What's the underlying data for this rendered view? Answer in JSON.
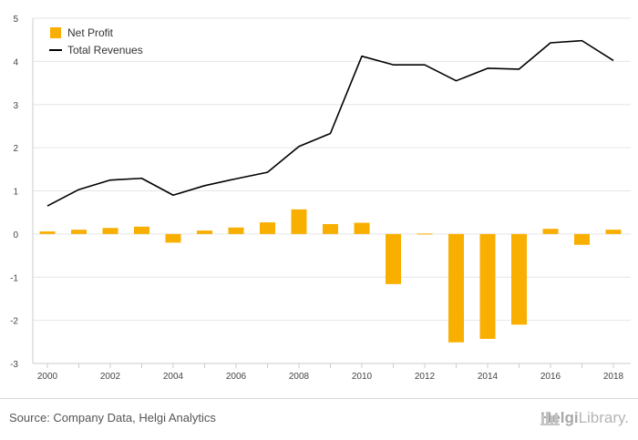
{
  "chart_data": {
    "type": "bar",
    "x": [
      2000,
      2001,
      2002,
      2003,
      2004,
      2005,
      2006,
      2007,
      2008,
      2009,
      2010,
      2011,
      2012,
      2013,
      2014,
      2015,
      2016,
      2017,
      2018
    ],
    "x_tick_labels": [
      "2000",
      "2002",
      "2004",
      "2006",
      "2008",
      "2010",
      "2012",
      "2014",
      "2016",
      "2018"
    ],
    "y_tick_labels": [
      "5",
      "4",
      "3",
      "2",
      "1",
      "0",
      "-1",
      "-2",
      "-3"
    ],
    "ylim": [
      -3,
      5
    ],
    "grid": true,
    "legend_position": "top-left",
    "series": [
      {
        "name": "Net Profit",
        "type": "bar",
        "color": "#F9AF00",
        "values": [
          0.06,
          0.1,
          0.14,
          0.17,
          -0.2,
          0.08,
          0.15,
          0.27,
          0.57,
          0.23,
          0.26,
          -1.16,
          0.01,
          -2.51,
          -2.43,
          -2.1,
          0.12,
          -0.25,
          0.1
        ]
      },
      {
        "name": "Total Revenues",
        "type": "line",
        "color": "#000000",
        "values": [
          0.65,
          1.03,
          1.25,
          1.29,
          0.9,
          1.12,
          1.28,
          1.43,
          2.03,
          2.33,
          4.12,
          3.92,
          3.92,
          3.55,
          3.84,
          3.82,
          4.43,
          4.48,
          4.02
        ]
      }
    ]
  },
  "footer": {
    "source": "Source: Company Data, Helgi Analytics",
    "brand_prefix": "Helgi",
    "brand_suffix": "Library."
  }
}
